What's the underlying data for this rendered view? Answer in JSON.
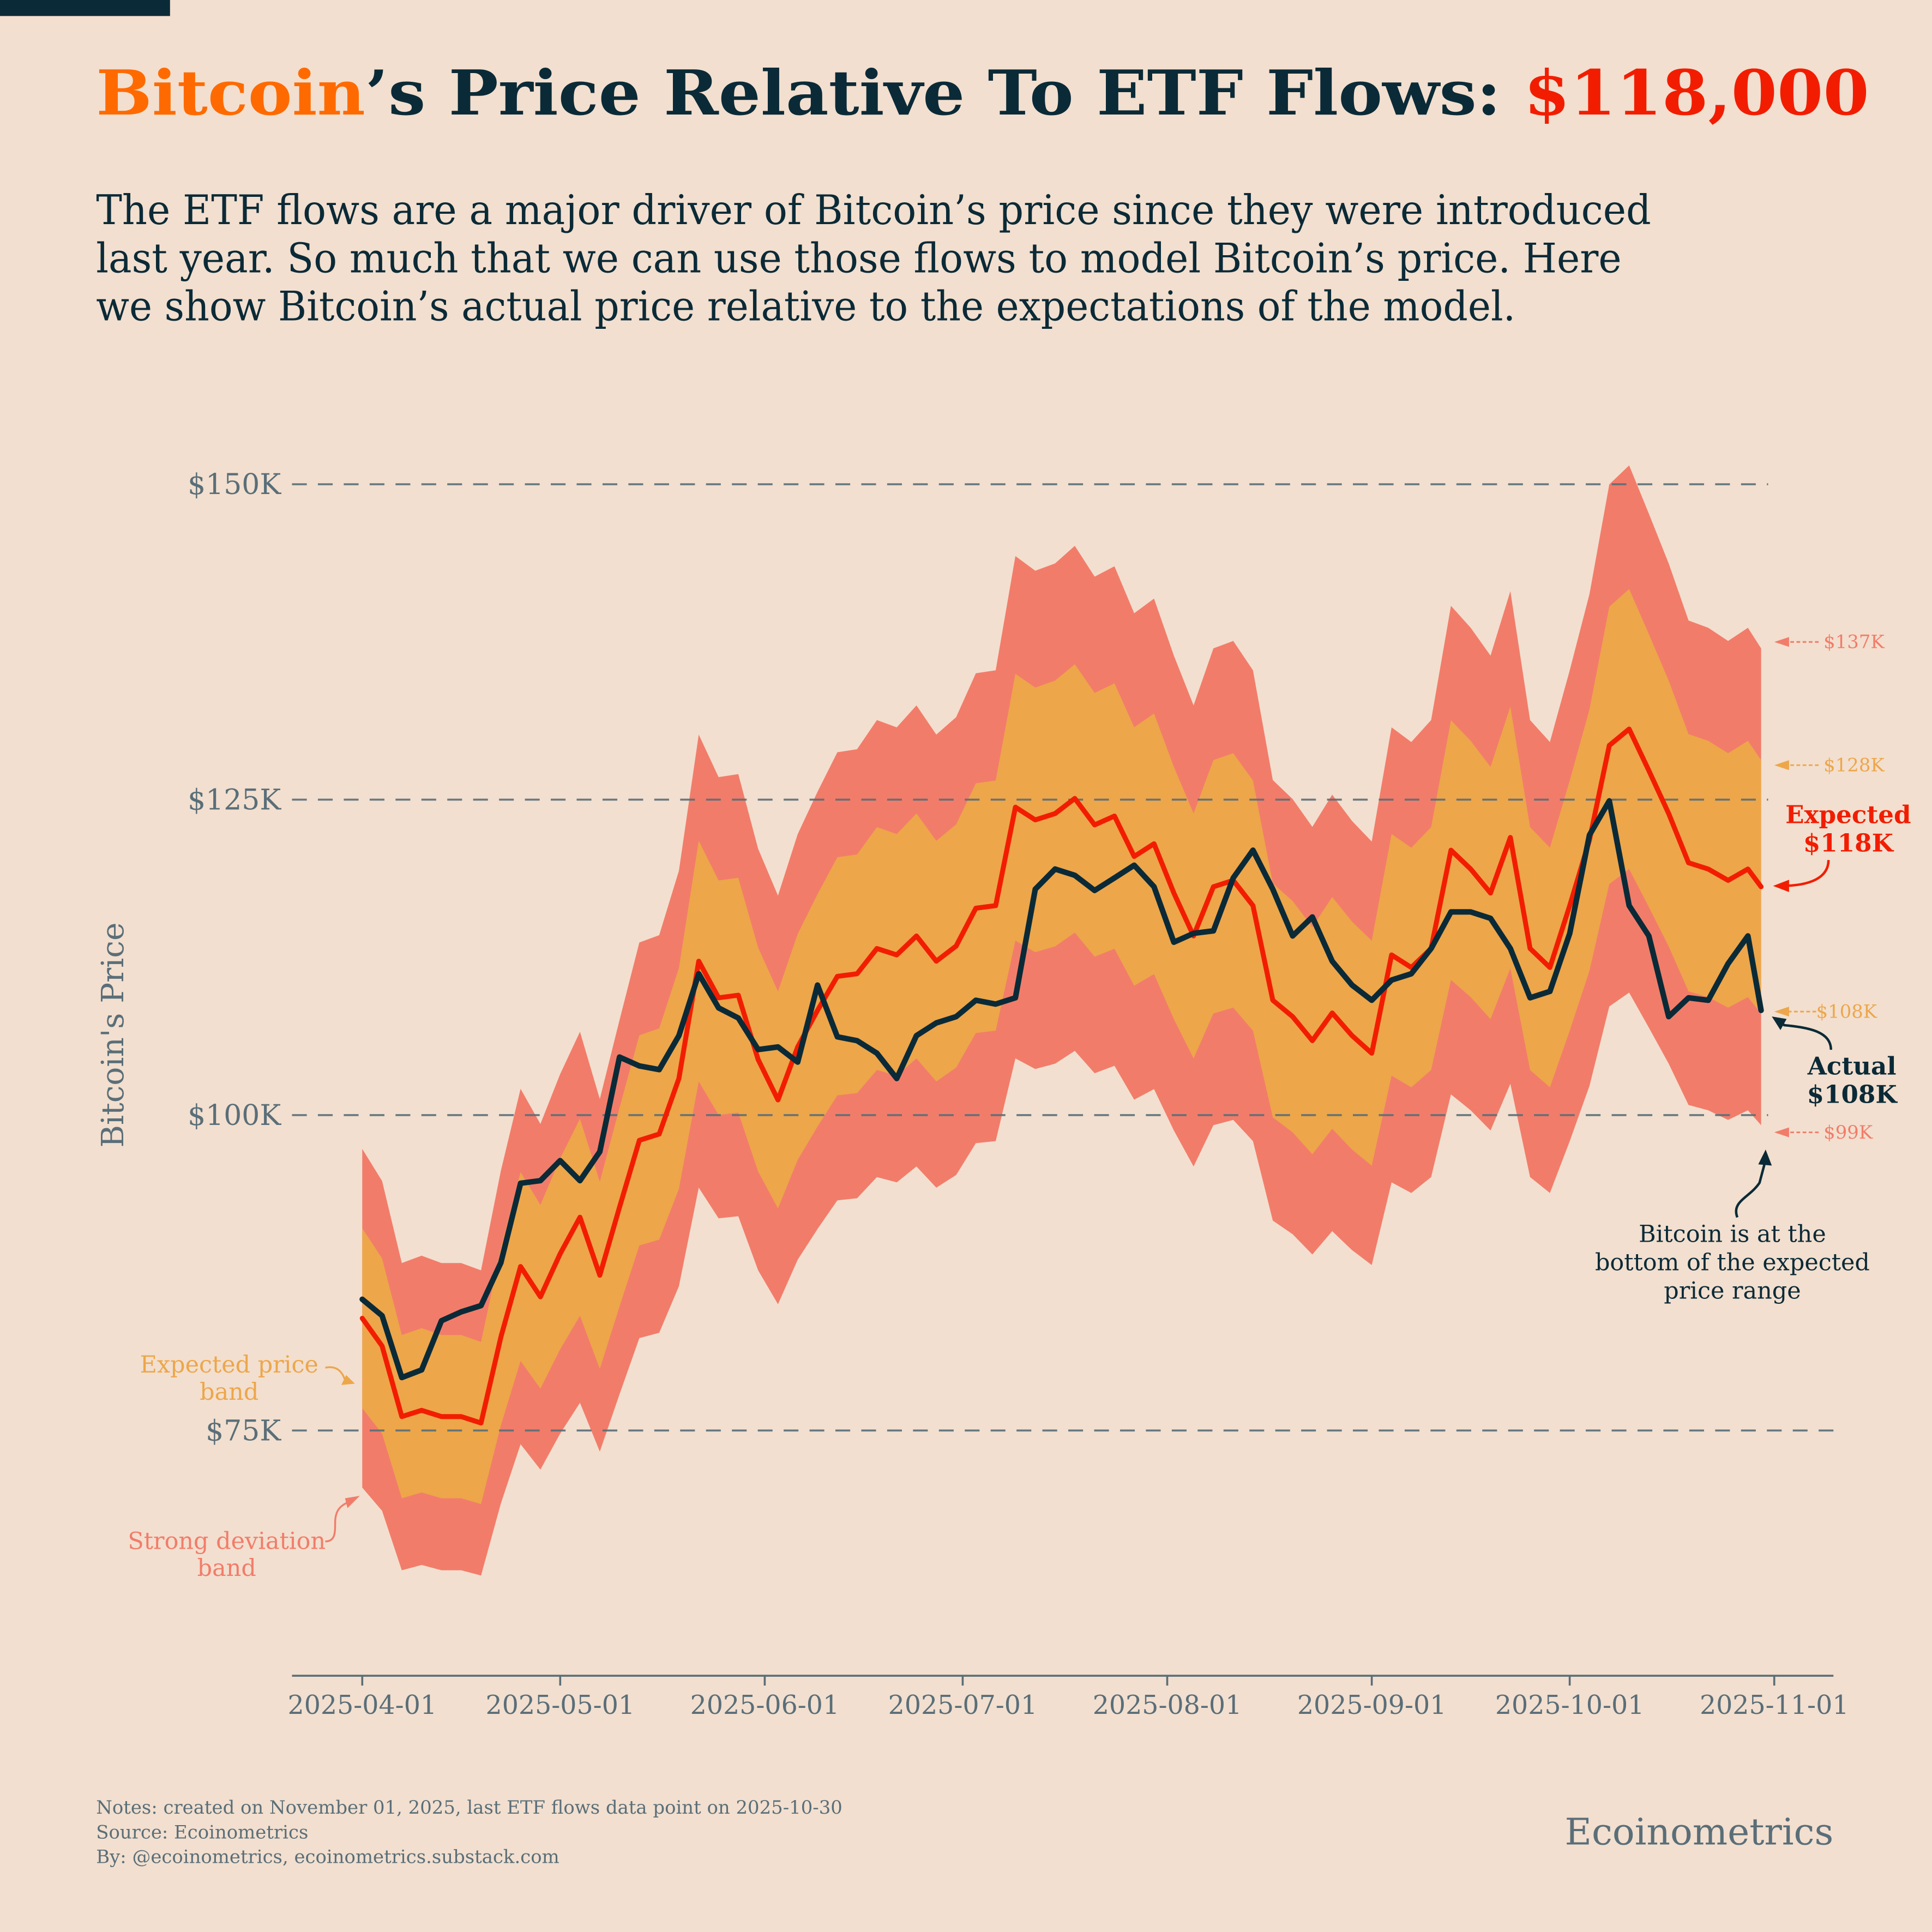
{
  "header": {
    "title_part1": "Bitcoin",
    "title_part2": "’s Price Relative To ETF Flows: ",
    "title_part3": "$118,000",
    "subtitle_lines": [
      "The ETF flows are a major driver of Bitcoin’s price since they were introduced",
      "last year. So much that we can use those flows to model Bitcoin’s price. Here",
      "we show Bitcoin’s actual price relative to the expectations of the model."
    ]
  },
  "colors": {
    "background": "#F2DFCF",
    "bitcoin_orange": "#FF6A00",
    "expected_red": "#F21D00",
    "actual_dark": "#0B2A37",
    "expected_band": "#EDA64A",
    "strong_band": "#F27C6A",
    "axis_grey": "#5A6E78"
  },
  "chart_data": {
    "type": "line",
    "ylabel": "Bitcoin's Price",
    "ylim": [
      58,
      152
    ],
    "xlim": [
      "2025-03-21",
      "2025-11-06"
    ],
    "y_ticks": [
      {
        "value": 150,
        "label": "$150K"
      },
      {
        "value": 125,
        "label": "$125K"
      },
      {
        "value": 100,
        "label": "$100K"
      },
      {
        "value": 75,
        "label": "$75K"
      }
    ],
    "x_ticks": [
      "2025-04-01",
      "2025-05-01",
      "2025-06-01",
      "2025-07-01",
      "2025-08-01",
      "2025-09-01",
      "2025-10-01",
      "2025-11-01"
    ],
    "grid": "horizontal dashed",
    "unit": "thousand USD",
    "x": [
      "2025-04-01",
      "2025-04-04",
      "2025-04-07",
      "2025-04-10",
      "2025-04-13",
      "2025-04-16",
      "2025-04-19",
      "2025-04-22",
      "2025-04-25",
      "2025-04-28",
      "2025-05-01",
      "2025-05-04",
      "2025-05-07",
      "2025-05-10",
      "2025-05-13",
      "2025-05-16",
      "2025-05-19",
      "2025-05-22",
      "2025-05-25",
      "2025-05-28",
      "2025-05-31",
      "2025-06-03",
      "2025-06-06",
      "2025-06-09",
      "2025-06-12",
      "2025-06-15",
      "2025-06-18",
      "2025-06-21",
      "2025-06-24",
      "2025-06-27",
      "2025-06-30",
      "2025-07-03",
      "2025-07-06",
      "2025-07-09",
      "2025-07-12",
      "2025-07-15",
      "2025-07-18",
      "2025-07-21",
      "2025-07-24",
      "2025-07-27",
      "2025-07-30",
      "2025-08-02",
      "2025-08-05",
      "2025-08-08",
      "2025-08-11",
      "2025-08-14",
      "2025-08-17",
      "2025-08-20",
      "2025-08-23",
      "2025-08-26",
      "2025-08-29",
      "2025-09-01",
      "2025-09-04",
      "2025-09-07",
      "2025-09-10",
      "2025-09-13",
      "2025-09-16",
      "2025-09-19",
      "2025-09-22",
      "2025-09-25",
      "2025-09-28",
      "2025-10-01",
      "2025-10-04",
      "2025-10-07",
      "2025-10-10",
      "2025-10-13",
      "2025-10-16",
      "2025-10-19",
      "2025-10-22",
      "2025-10-25",
      "2025-10-28",
      "2025-10-30"
    ],
    "series": [
      {
        "key": "expected",
        "values": [
          83.9,
          81.7,
          76.1,
          76.6,
          76.1,
          76.1,
          75.6,
          82.4,
          88.0,
          85.6,
          89.0,
          91.9,
          87.3,
          92.7,
          98.0,
          98.5,
          102.9,
          112.2,
          109.3,
          109.5,
          104.4,
          101.2,
          105.4,
          108.3,
          111.0,
          111.2,
          113.2,
          112.7,
          114.2,
          112.2,
          113.4,
          116.4,
          116.6,
          124.4,
          123.4,
          123.9,
          125.1,
          123.0,
          123.7,
          120.5,
          121.5,
          117.6,
          114.2,
          118.1,
          118.6,
          116.6,
          109.1,
          107.8,
          105.9,
          108.1,
          106.3,
          104.9,
          112.7,
          111.7,
          113.2,
          121.0,
          119.5,
          117.6,
          122.0,
          113.2,
          111.7,
          116.6,
          121.8,
          129.3,
          130.6,
          127.3,
          123.9,
          120.0,
          119.5,
          118.6,
          119.5,
          118.1
        ]
      },
      {
        "key": "actual",
        "values": [
          85.4,
          84.1,
          79.2,
          79.8,
          83.7,
          84.4,
          84.9,
          88.3,
          94.6,
          94.8,
          96.4,
          94.8,
          97.1,
          104.6,
          103.9,
          103.6,
          106.3,
          111.2,
          108.5,
          107.7,
          105.2,
          105.4,
          104.2,
          110.3,
          106.2,
          105.9,
          104.9,
          102.9,
          106.3,
          107.3,
          107.8,
          109.1,
          108.8,
          109.3,
          117.9,
          119.5,
          119.0,
          117.8,
          118.8,
          119.8,
          118.1,
          113.7,
          114.4,
          114.6,
          118.8,
          121.0,
          117.9,
          114.2,
          115.7,
          112.2,
          110.3,
          109.1,
          110.7,
          111.2,
          113.2,
          116.1,
          116.1,
          115.6,
          113.2,
          109.3,
          109.8,
          114.4,
          122.2,
          124.9,
          116.6,
          114.2,
          107.8,
          109.3,
          109.1,
          112.0,
          114.2,
          108.3
        ]
      }
    ],
    "expected_band_pct": 8.5,
    "strong_band_pct": 16,
    "end_labels": {
      "strong_upper": "$137K",
      "expected_upper": "$128K",
      "expected_lower": "$108K",
      "strong_lower": "$99K"
    }
  },
  "annotations": {
    "expected_title": "Expected",
    "expected_value": "$118K",
    "actual_title": "Actual",
    "actual_value": "$108K",
    "note_lines": [
      "Bitcoin is at the",
      "bottom of the expected",
      "price range"
    ],
    "expected_band_lines": [
      "Expected price",
      "band"
    ],
    "strong_band_lines": [
      "Strong deviation",
      "band"
    ]
  },
  "footer": {
    "notes": "Notes: created on November 01, 2025, last ETF flows data point on 2025-10-30",
    "source": "Source: Ecoinometrics",
    "by": "By: @ecoinometrics, ecoinometrics.substack.com",
    "brand": "Ecoinometrics"
  }
}
